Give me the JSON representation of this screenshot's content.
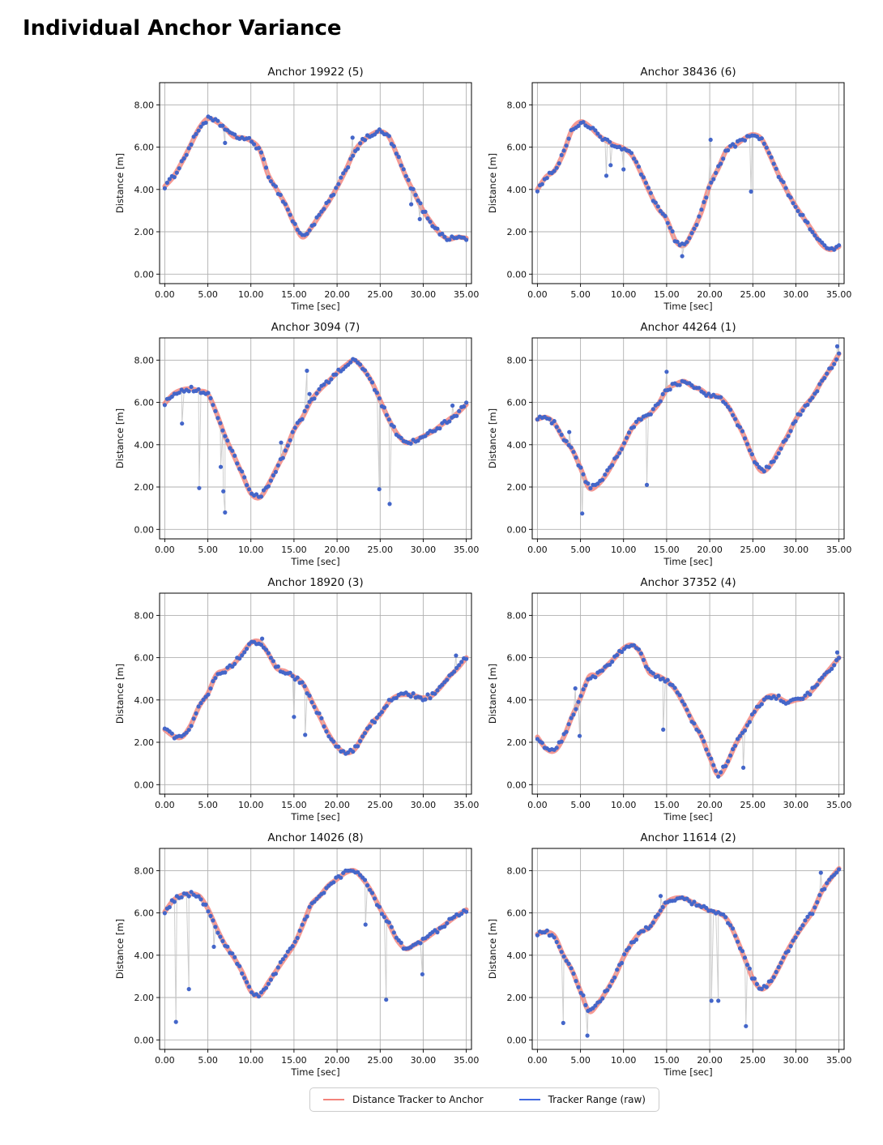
{
  "page_title": "Individual Anchor Variance",
  "legend": {
    "items": [
      {
        "label": "Distance Tracker to Anchor",
        "color": "#f3837b"
      },
      {
        "label": "Tracker Range (raw)",
        "color": "#4169e1"
      }
    ]
  },
  "axes": {
    "xlabel": "Time [sec]",
    "ylabel": "Distance [m]",
    "xticks": [
      "0.00",
      "5.00",
      "10.00",
      "15.00",
      "20.00",
      "25.00",
      "30.00",
      "35.00"
    ],
    "xtick_values": [
      0,
      5,
      10,
      15,
      20,
      25,
      30,
      35
    ],
    "yticks": [
      "0.00",
      "2.00",
      "4.00",
      "6.00",
      "8.00"
    ],
    "ytick_values": [
      0,
      2,
      4,
      6,
      8
    ],
    "xlim": [
      -0.6,
      35.6
    ],
    "ylim": [
      -0.45,
      9.05
    ],
    "grid": true
  },
  "chart_data": [
    {
      "type": "line",
      "title": "Anchor 19922 (5)",
      "x_start": 0,
      "x_step": 1,
      "series": [
        {
          "name": "Distance Tracker to Anchor",
          "color": "#f3837b",
          "y": [
            4.15,
            4.6,
            5.3,
            6.1,
            6.9,
            7.35,
            7.2,
            6.9,
            6.5,
            6.45,
            6.3,
            5.9,
            4.7,
            4.0,
            3.3,
            2.4,
            1.75,
            2.2,
            2.8,
            3.4,
            4.1,
            4.9,
            5.8,
            6.3,
            6.6,
            6.75,
            6.5,
            5.6,
            4.6,
            3.8,
            3.0,
            2.4,
            1.9,
            1.65,
            1.75,
            1.7
          ]
        },
        {
          "name": "Tracker Range (raw)",
          "color": "#4466c9",
          "sample_interval": 0.28,
          "jitter": 0.11,
          "outliers": [
            [
              7,
              6.2
            ],
            [
              21.8,
              6.45
            ],
            [
              28.6,
              3.3
            ],
            [
              29.6,
              2.6
            ]
          ]
        }
      ]
    },
    {
      "type": "line",
      "title": "Anchor 38436 (6)",
      "x_start": 0,
      "x_step": 1,
      "series": [
        {
          "name": "Distance Tracker to Anchor",
          "color": "#f3837b",
          "y": [
            4.0,
            4.6,
            4.9,
            5.7,
            6.8,
            7.2,
            7.0,
            6.6,
            6.3,
            6.1,
            5.95,
            5.6,
            4.8,
            3.9,
            3.1,
            2.6,
            1.6,
            1.35,
            2.0,
            2.9,
            4.2,
            5.0,
            5.9,
            6.1,
            6.4,
            6.6,
            6.4,
            5.6,
            4.7,
            3.9,
            3.2,
            2.6,
            2.0,
            1.4,
            1.15,
            1.3
          ]
        },
        {
          "name": "Tracker Range (raw)",
          "color": "#4466c9",
          "sample_interval": 0.28,
          "jitter": 0.11,
          "outliers": [
            [
              8,
              4.65
            ],
            [
              8.5,
              5.15
            ],
            [
              10,
              4.95
            ],
            [
              16.8,
              0.85
            ],
            [
              20.1,
              6.35
            ],
            [
              24.8,
              3.9
            ]
          ]
        }
      ]
    },
    {
      "type": "line",
      "title": "Anchor 3094 (7)",
      "x_start": 0,
      "x_step": 1,
      "series": [
        {
          "name": "Distance Tracker to Anchor",
          "color": "#f3837b",
          "y": [
            5.95,
            6.4,
            6.6,
            6.65,
            6.55,
            6.4,
            5.5,
            4.4,
            3.5,
            2.6,
            1.7,
            1.5,
            2.1,
            2.9,
            3.7,
            4.7,
            5.3,
            6.1,
            6.6,
            7.0,
            7.4,
            7.75,
            8.0,
            7.6,
            7.0,
            6.1,
            5.2,
            4.5,
            4.1,
            4.2,
            4.4,
            4.6,
            4.9,
            5.2,
            5.5,
            5.9
          ]
        },
        {
          "name": "Tracker Range (raw)",
          "color": "#4466c9",
          "sample_interval": 0.28,
          "jitter": 0.11,
          "outliers": [
            [
              2,
              5.0
            ],
            [
              4,
              1.95
            ],
            [
              6.5,
              2.95
            ],
            [
              6.8,
              1.8
            ],
            [
              7,
              0.8
            ],
            [
              13.5,
              4.1
            ],
            [
              16.5,
              7.5
            ],
            [
              16.8,
              6.4
            ],
            [
              24.9,
              1.9
            ],
            [
              26.1,
              1.2
            ],
            [
              33.4,
              5.85
            ]
          ]
        }
      ]
    },
    {
      "type": "line",
      "title": "Anchor 44264 (1)",
      "x_start": 0,
      "x_step": 1,
      "series": [
        {
          "name": "Distance Tracker to Anchor",
          "color": "#f3837b",
          "y": [
            5.2,
            5.3,
            5.0,
            4.3,
            3.8,
            2.9,
            1.95,
            2.1,
            2.6,
            3.3,
            4.0,
            4.8,
            5.2,
            5.45,
            5.9,
            6.6,
            6.85,
            7.0,
            6.75,
            6.6,
            6.3,
            6.3,
            5.9,
            5.2,
            4.4,
            3.4,
            2.75,
            3.0,
            3.7,
            4.4,
            5.2,
            5.8,
            6.3,
            7.0,
            7.6,
            8.3
          ]
        },
        {
          "name": "Tracker Range (raw)",
          "color": "#4466c9",
          "sample_interval": 0.28,
          "jitter": 0.11,
          "outliers": [
            [
              3.7,
              4.6
            ],
            [
              5.2,
              0.75
            ],
            [
              12.7,
              2.1
            ],
            [
              15.0,
              7.45
            ],
            [
              34.8,
              8.65
            ]
          ]
        }
      ]
    },
    {
      "type": "line",
      "title": "Anchor 18920 (3)",
      "x_start": 0,
      "x_step": 1,
      "series": [
        {
          "name": "Distance Tracker to Anchor",
          "color": "#f3837b",
          "y": [
            2.6,
            2.3,
            2.25,
            2.8,
            3.7,
            4.3,
            5.2,
            5.4,
            5.7,
            6.2,
            6.7,
            6.75,
            6.2,
            5.5,
            5.35,
            5.1,
            4.8,
            4.0,
            3.2,
            2.4,
            1.8,
            1.5,
            1.65,
            2.3,
            2.9,
            3.3,
            3.9,
            4.2,
            4.25,
            4.2,
            4.1,
            4.2,
            4.6,
            5.1,
            5.5,
            6.0
          ]
        },
        {
          "name": "Tracker Range (raw)",
          "color": "#4466c9",
          "sample_interval": 0.28,
          "jitter": 0.11,
          "outliers": [
            [
              11.3,
              6.9
            ],
            [
              15.0,
              3.2
            ],
            [
              16.3,
              2.35
            ],
            [
              33.8,
              6.1
            ]
          ]
        }
      ]
    },
    {
      "type": "line",
      "title": "Anchor 37352 (4)",
      "x_start": 0,
      "x_step": 1,
      "series": [
        {
          "name": "Distance Tracker to Anchor",
          "color": "#f3837b",
          "y": [
            2.25,
            1.7,
            1.6,
            2.2,
            3.2,
            4.1,
            5.1,
            5.2,
            5.6,
            6.0,
            6.45,
            6.6,
            6.2,
            5.3,
            5.15,
            4.9,
            4.5,
            3.8,
            3.0,
            2.3,
            1.3,
            0.45,
            1.0,
            1.9,
            2.6,
            3.3,
            3.9,
            4.2,
            4.1,
            3.9,
            4.0,
            4.1,
            4.5,
            5.0,
            5.5,
            6.0
          ]
        },
        {
          "name": "Tracker Range (raw)",
          "color": "#4466c9",
          "sample_interval": 0.28,
          "jitter": 0.11,
          "outliers": [
            [
              4.4,
              4.55
            ],
            [
              4.9,
              2.3
            ],
            [
              14.6,
              2.6
            ],
            [
              23.9,
              0.8
            ],
            [
              34.8,
              6.25
            ]
          ]
        }
      ]
    },
    {
      "type": "line",
      "title": "Anchor 14026 (8)",
      "x_start": 0,
      "x_step": 1,
      "series": [
        {
          "name": "Distance Tracker to Anchor",
          "color": "#f3837b",
          "y": [
            6.05,
            6.6,
            6.85,
            6.9,
            6.8,
            6.2,
            5.3,
            4.5,
            3.9,
            3.2,
            2.3,
            2.1,
            2.7,
            3.3,
            3.9,
            4.5,
            5.4,
            6.4,
            6.8,
            7.3,
            7.6,
            7.9,
            8.0,
            7.6,
            7.0,
            6.2,
            5.5,
            4.7,
            4.3,
            4.5,
            4.7,
            5.0,
            5.3,
            5.6,
            5.9,
            6.15
          ]
        },
        {
          "name": "Tracker Range (raw)",
          "color": "#4466c9",
          "sample_interval": 0.28,
          "jitter": 0.11,
          "outliers": [
            [
              1.3,
              0.85
            ],
            [
              2.8,
              2.4
            ],
            [
              5.7,
              4.4
            ],
            [
              23.3,
              5.45
            ],
            [
              25.7,
              1.9
            ],
            [
              29.9,
              3.1
            ]
          ]
        }
      ]
    },
    {
      "type": "line",
      "title": "Anchor 11614 (2)",
      "x_start": 0,
      "x_step": 1,
      "series": [
        {
          "name": "Distance Tracker to Anchor",
          "color": "#f3837b",
          "y": [
            5.0,
            5.1,
            4.9,
            4.0,
            3.3,
            2.3,
            1.35,
            1.7,
            2.3,
            3.0,
            3.9,
            4.6,
            5.1,
            5.3,
            5.9,
            6.5,
            6.7,
            6.7,
            6.5,
            6.3,
            6.1,
            6.0,
            5.7,
            4.9,
            3.9,
            2.9,
            2.4,
            2.7,
            3.4,
            4.2,
            4.9,
            5.5,
            6.1,
            7.0,
            7.6,
            8.1
          ]
        },
        {
          "name": "Tracker Range (raw)",
          "color": "#4466c9",
          "sample_interval": 0.28,
          "jitter": 0.11,
          "outliers": [
            [
              3.0,
              0.8
            ],
            [
              5.8,
              0.2
            ],
            [
              14.3,
              6.8
            ],
            [
              20.2,
              1.85
            ],
            [
              21.0,
              1.85
            ],
            [
              24.2,
              0.65
            ],
            [
              32.9,
              7.9
            ]
          ]
        }
      ]
    }
  ]
}
